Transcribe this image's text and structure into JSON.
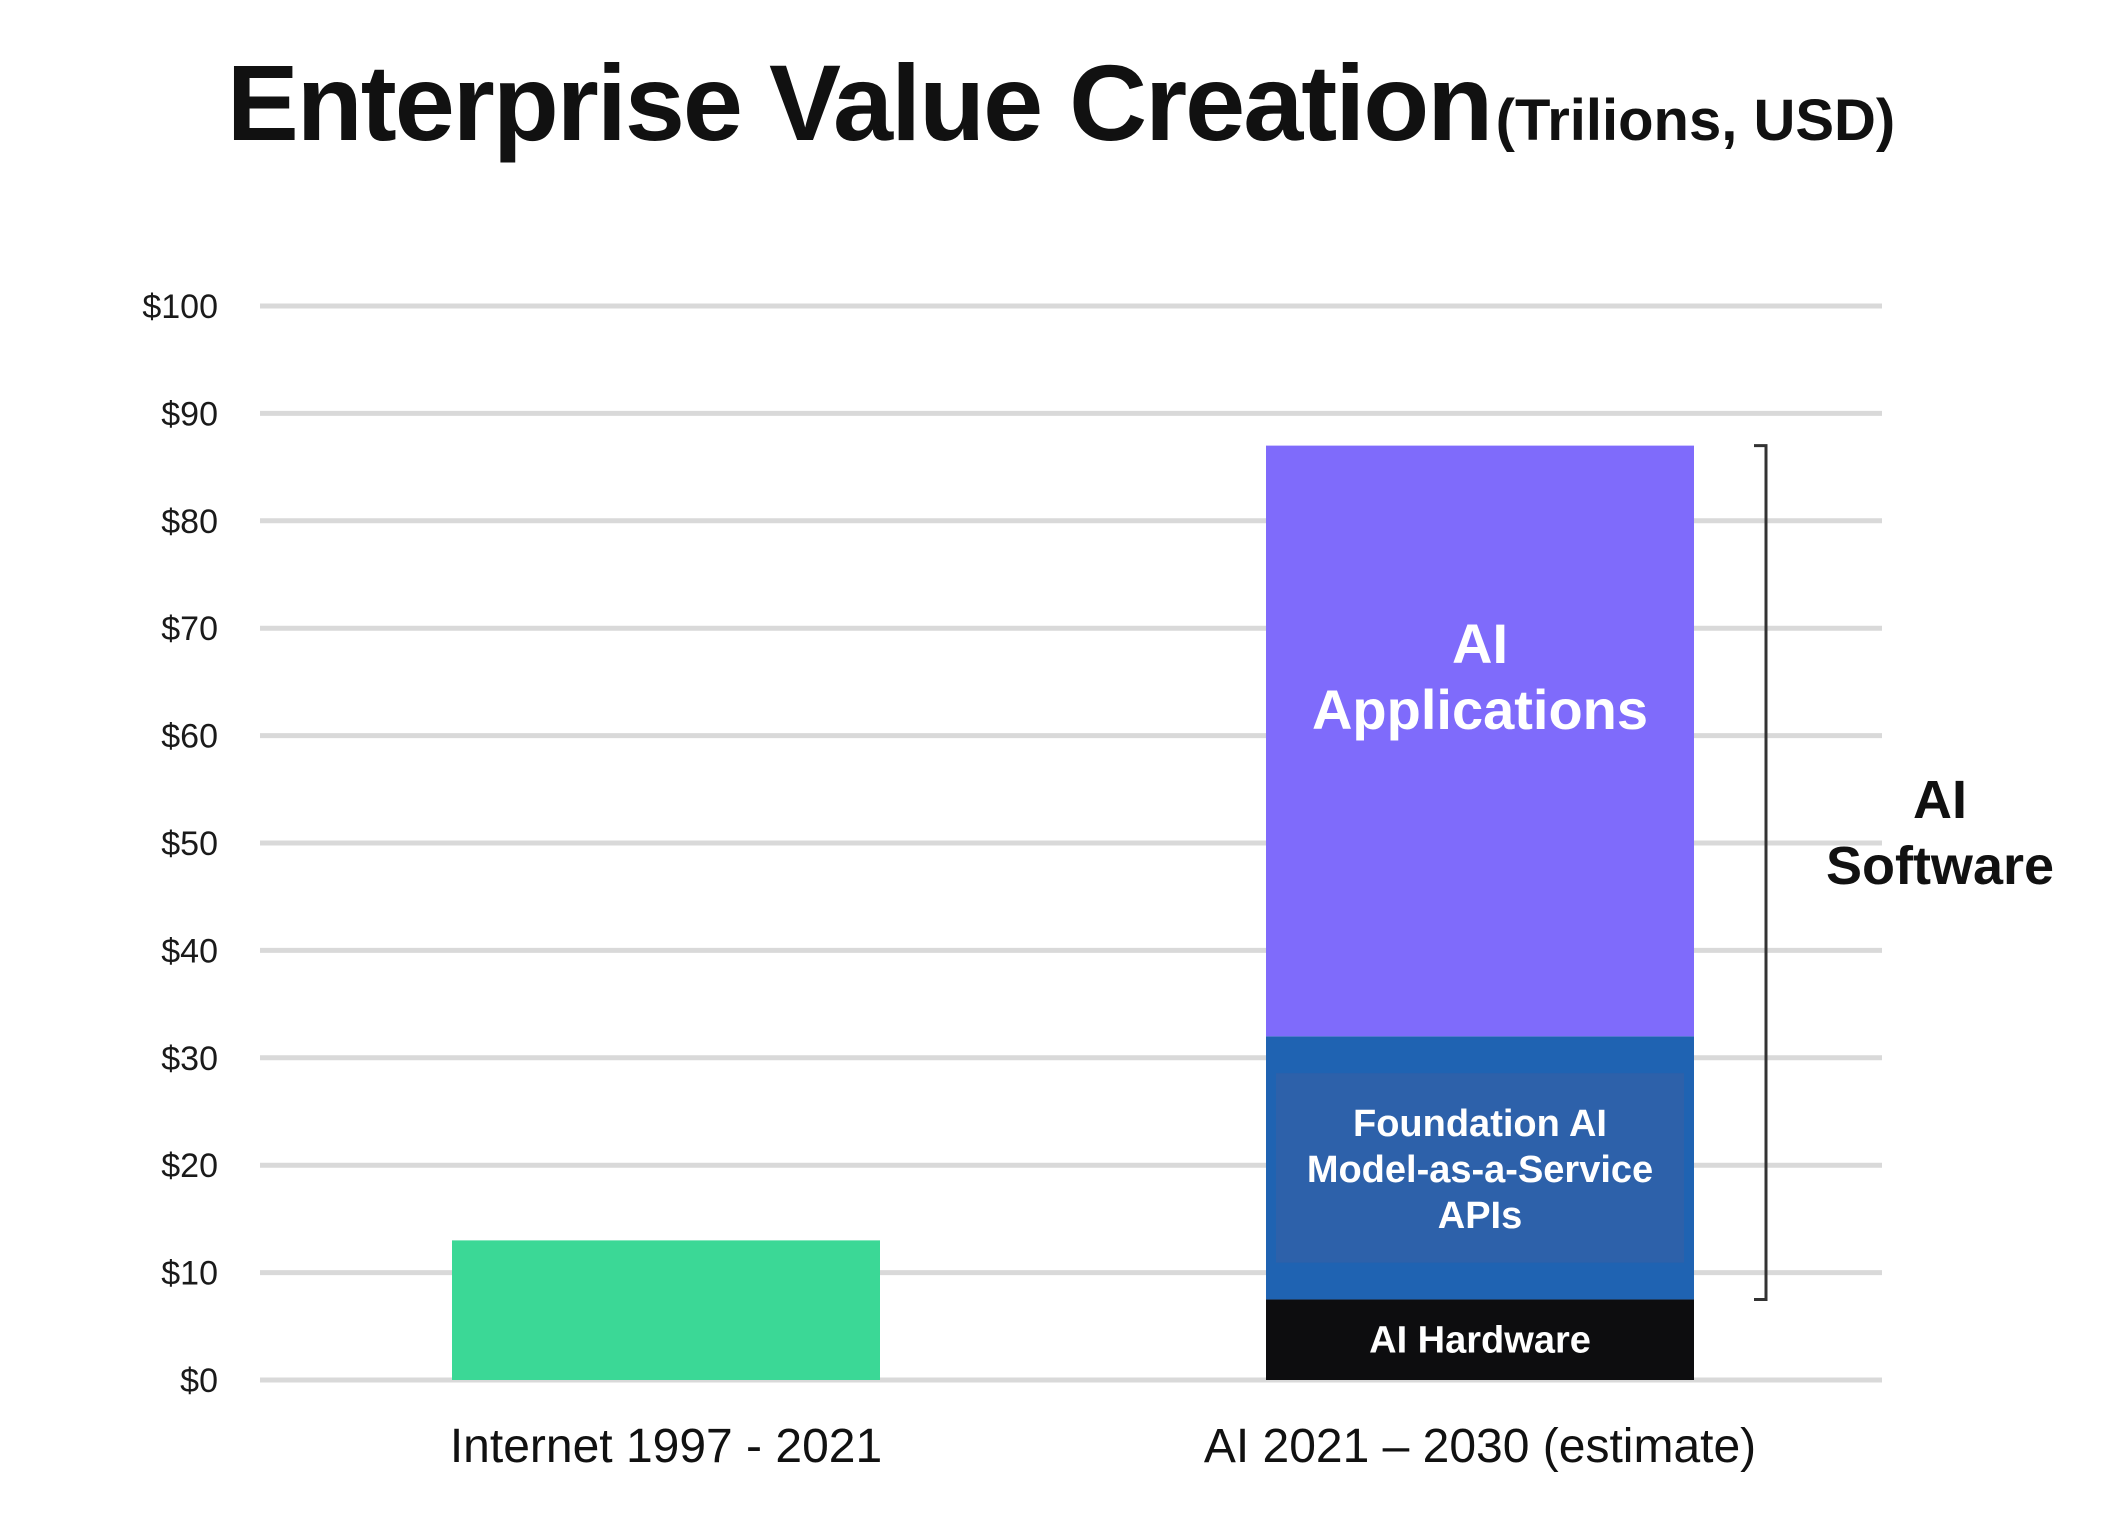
{
  "title": "Enterprise Value Creation",
  "title_unit": "(Trilions, USD)",
  "chart_data": {
    "type": "bar",
    "stacked": true,
    "ylim": [
      0,
      100
    ],
    "yticks": [
      "$0",
      "$10",
      "$20",
      "$30",
      "$40",
      "$50",
      "$60",
      "$70",
      "$80",
      "$90",
      "$100"
    ],
    "grid": true,
    "categories": [
      "Internet 1997 - 2021",
      "AI 2021 – 2030 (estimate)"
    ],
    "series": [
      {
        "name": "",
        "color": "#3bd896",
        "values": [
          13,
          0
        ]
      },
      {
        "name": "AI Hardware",
        "color": "#0d0d0f",
        "values": [
          0,
          7.5
        ]
      },
      {
        "name": "Foundation AI Model-as-a-Service APIs",
        "color": "#1f63b2",
        "values": [
          0,
          24.5
        ]
      },
      {
        "name": "AI Applications",
        "color": "#7f6bfb",
        "values": [
          0,
          55
        ]
      }
    ],
    "segment_labels": {
      "ai_hardware": "AI Hardware",
      "foundation_lines": [
        "Foundation AI",
        "Model-as-a-Service",
        "APIs"
      ],
      "applications_lines": [
        "AI",
        "Applications"
      ]
    },
    "bracket": {
      "lines": [
        "AI",
        "Software"
      ],
      "from": 7.5,
      "to": 87
    }
  }
}
